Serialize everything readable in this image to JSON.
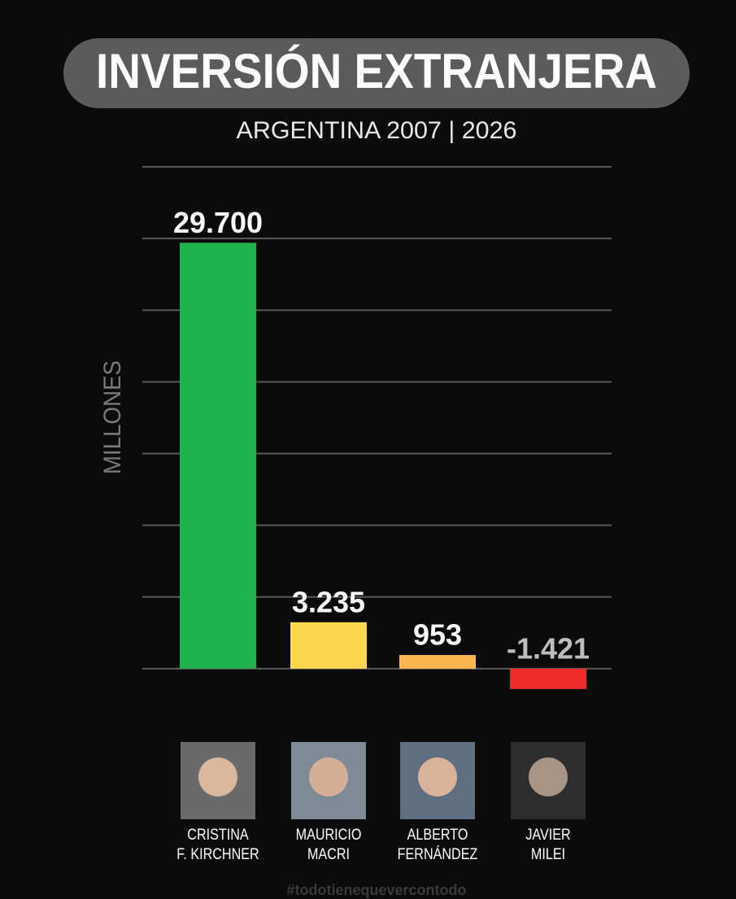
{
  "chart_data": {
    "type": "bar",
    "title": "INVERSIÓN EXTRANJERA",
    "subtitle": "ARGENTINA 2007 | 2026",
    "y_label": "MILLONES",
    "categories": [
      "CRISTINA\nF. KIRCHNER",
      "MAURICIO\nMACRI",
      "ALBERTO\nFERNÁNDEZ",
      "JAVIER\nMILEI"
    ],
    "values": [
      29700,
      3235,
      953,
      -1421
    ],
    "value_labels": [
      "29.700",
      "3.235",
      "953",
      "-1.421"
    ],
    "colors": [
      "#1fb24d",
      "#fdd84e",
      "#fdb54f",
      "#ee2b2b"
    ],
    "ylim": [
      -5000,
      35000
    ],
    "yticks": [
      0,
      5000,
      10000,
      15000,
      20000,
      25000,
      30000,
      35000
    ],
    "grid": true,
    "watermark": "#todotienequevercontodo"
  }
}
